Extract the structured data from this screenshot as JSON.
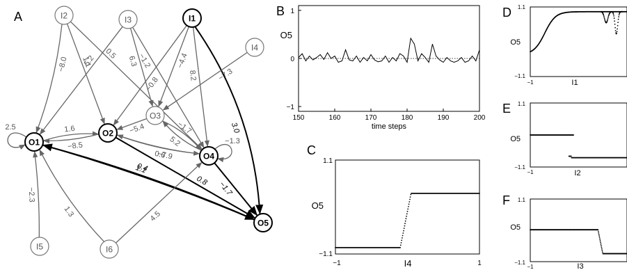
{
  "panel_labels": {
    "A": "A",
    "B": "B",
    "C": "C",
    "D": "D",
    "E": "E",
    "F": "F"
  },
  "network": {
    "nodes": [
      {
        "id": "I2",
        "label": "I2",
        "style": "input"
      },
      {
        "id": "I3",
        "label": "I3",
        "style": "input"
      },
      {
        "id": "I1",
        "label": "I1",
        "style": "active"
      },
      {
        "id": "I4",
        "label": "I4",
        "style": "input"
      },
      {
        "id": "O3",
        "label": "O3",
        "style": "input"
      },
      {
        "id": "O1",
        "label": "O1",
        "style": "active"
      },
      {
        "id": "O2",
        "label": "O2",
        "style": "active"
      },
      {
        "id": "O4",
        "label": "O4",
        "style": "active"
      },
      {
        "id": "O5",
        "label": "O5",
        "style": "active"
      },
      {
        "id": "I5",
        "label": "I5",
        "style": "input"
      },
      {
        "id": "I6",
        "label": "I6",
        "style": "input"
      }
    ],
    "edges": [
      {
        "from": "I2",
        "to": "O1",
        "weight": "−8.0",
        "style": "gray"
      },
      {
        "from": "I2",
        "to": "O2",
        "weight": "1.1",
        "style": "gray"
      },
      {
        "from": "I2",
        "to": "O4",
        "weight": "0.5",
        "style": "gray"
      },
      {
        "from": "I3",
        "to": "O1",
        "weight": "5.2",
        "style": "gray"
      },
      {
        "from": "I3",
        "to": "O3",
        "weight": "6.3",
        "style": "gray"
      },
      {
        "from": "I3",
        "to": "O4",
        "weight": "−1.2",
        "style": "gray"
      },
      {
        "from": "I1",
        "to": "O2",
        "weight": "−0.8",
        "style": "gray"
      },
      {
        "from": "I1",
        "to": "O3",
        "weight": "−4.4",
        "style": "gray"
      },
      {
        "from": "I1",
        "to": "O4",
        "weight": "8.2",
        "style": "gray"
      },
      {
        "from": "I1",
        "to": "O5",
        "weight": "3.0",
        "style": "black"
      },
      {
        "from": "I4",
        "to": "O3",
        "weight": "−7.3",
        "style": "gray"
      },
      {
        "from": "O3",
        "to": "O2",
        "weight": "−5.4",
        "style": "gray"
      },
      {
        "from": "O3",
        "to": "O4",
        "weight": "−1.7",
        "style": "gray"
      },
      {
        "from": "O4",
        "to": "O3",
        "weight": "5.2",
        "style": "gray"
      },
      {
        "from": "O1",
        "to": "O1",
        "weight": "2.5",
        "style": "gray"
      },
      {
        "from": "O1",
        "to": "O2",
        "weight": "1.6",
        "style": "gray"
      },
      {
        "from": "O2",
        "to": "O1",
        "weight": "−8.5",
        "style": "gray"
      },
      {
        "from": "O4",
        "to": "O2",
        "weight": "−7.9",
        "style": "gray"
      },
      {
        "from": "O2",
        "to": "O4",
        "weight": "0.6",
        "style": "gray"
      },
      {
        "from": "O4",
        "to": "O4",
        "weight": "−1.3",
        "style": "gray"
      },
      {
        "from": "O1",
        "to": "O5",
        "weight": "1.1",
        "style": "black"
      },
      {
        "from": "O5",
        "to": "O1",
        "weight": "0.4",
        "style": "black"
      },
      {
        "from": "O2",
        "to": "O5",
        "weight": "0.8",
        "style": "black"
      },
      {
        "from": "O4",
        "to": "O5",
        "weight": "−1.7",
        "style": "black"
      },
      {
        "from": "I5",
        "to": "O1",
        "weight": "−2.3",
        "style": "gray"
      },
      {
        "from": "I6",
        "to": "O1",
        "weight": "1.3",
        "style": "gray"
      },
      {
        "from": "I6",
        "to": "O4",
        "weight": "4.5",
        "style": "gray"
      }
    ]
  },
  "chart_data": [
    {
      "panel": "B",
      "type": "line",
      "xlabel": "time steps",
      "ylabel": "O5",
      "xlim": [
        150,
        200
      ],
      "ylim": [
        -1.1,
        1.1
      ],
      "xticks": [
        "150",
        "160",
        "170",
        "180",
        "190",
        "200"
      ],
      "yticks": [
        "−1",
        "0",
        "1"
      ],
      "reference_line": {
        "y": 0,
        "style": "dotted"
      },
      "x": [
        150,
        151,
        152,
        153,
        154,
        155,
        156,
        157,
        158,
        159,
        160,
        161,
        162,
        163,
        164,
        165,
        166,
        167,
        168,
        169,
        170,
        171,
        172,
        173,
        174,
        175,
        176,
        177,
        178,
        179,
        180,
        181,
        182,
        183,
        184,
        185,
        186,
        187,
        188,
        189,
        190,
        191,
        192,
        193,
        194,
        195,
        196,
        197,
        198,
        199,
        200
      ],
      "y": [
        0.02,
        0.1,
        -0.05,
        0.05,
        -0.03,
        0.02,
        0.08,
        -0.02,
        0.12,
        0.0,
        0.05,
        -0.08,
        -0.05,
        0.18,
        -0.03,
        -0.05,
        0.05,
        -0.08,
        0.02,
        -0.05,
        0.08,
        -0.03,
        -0.07,
        -0.05,
        0.05,
        -0.08,
        0.02,
        -0.05,
        0.1,
        0.05,
        -0.08,
        0.42,
        0.3,
        -0.05,
        0.1,
        0.02,
        -0.08,
        0.3,
        0.05,
        -0.03,
        -0.08,
        0.02,
        -0.05,
        -0.08,
        -0.05,
        0.02,
        -0.08,
        -0.05,
        0.05,
        -0.05,
        0.18
      ]
    },
    {
      "panel": "C",
      "type": "scatter",
      "xlabel": "I4",
      "ylabel": "O5",
      "xlim": [
        -1,
        1
      ],
      "ylim": [
        -1.1,
        1.1
      ],
      "xticks": [
        "−1",
        "1"
      ],
      "yticks": [
        "−1.1",
        "1.1"
      ],
      "step": {
        "low": -0.95,
        "high": 0.32,
        "x_start": -0.1,
        "x_end": 0.05
      }
    },
    {
      "panel": "D",
      "type": "scatter",
      "xlabel": "I1",
      "ylabel": "O5",
      "xlim": [
        -1,
        1
      ],
      "ylim": [
        -1.1,
        1.1
      ],
      "xticks": [
        "−1"
      ],
      "yticks": [
        "−1.1",
        "1.1"
      ],
      "curve": "sigmoid rise to 0.95 with dips near x=0.55 and x=0.75"
    },
    {
      "panel": "E",
      "type": "scatter",
      "xlabel": "I2",
      "ylabel": "O5",
      "xlim": [
        -1,
        1
      ],
      "ylim": [
        -1.1,
        1.1
      ],
      "xticks": [
        "−1"
      ],
      "yticks": [
        "−1.1",
        "1.1"
      ],
      "segments": [
        {
          "x": [
            -1,
            -0.1
          ],
          "y": 0.0
        },
        {
          "x": [
            -0.2,
            1
          ],
          "y": -0.78
        }
      ]
    },
    {
      "panel": "F",
      "type": "scatter",
      "xlabel": "I3",
      "ylabel": "O5",
      "xlim": [
        -1,
        1
      ],
      "ylim": [
        -1.1,
        1.1
      ],
      "xticks": [
        "−1"
      ],
      "yticks": [
        "−1.1",
        "1.1"
      ],
      "step": {
        "low": -0.82,
        "high": 0.02,
        "x_start": 0.4,
        "x_end": 0.5
      }
    }
  ]
}
